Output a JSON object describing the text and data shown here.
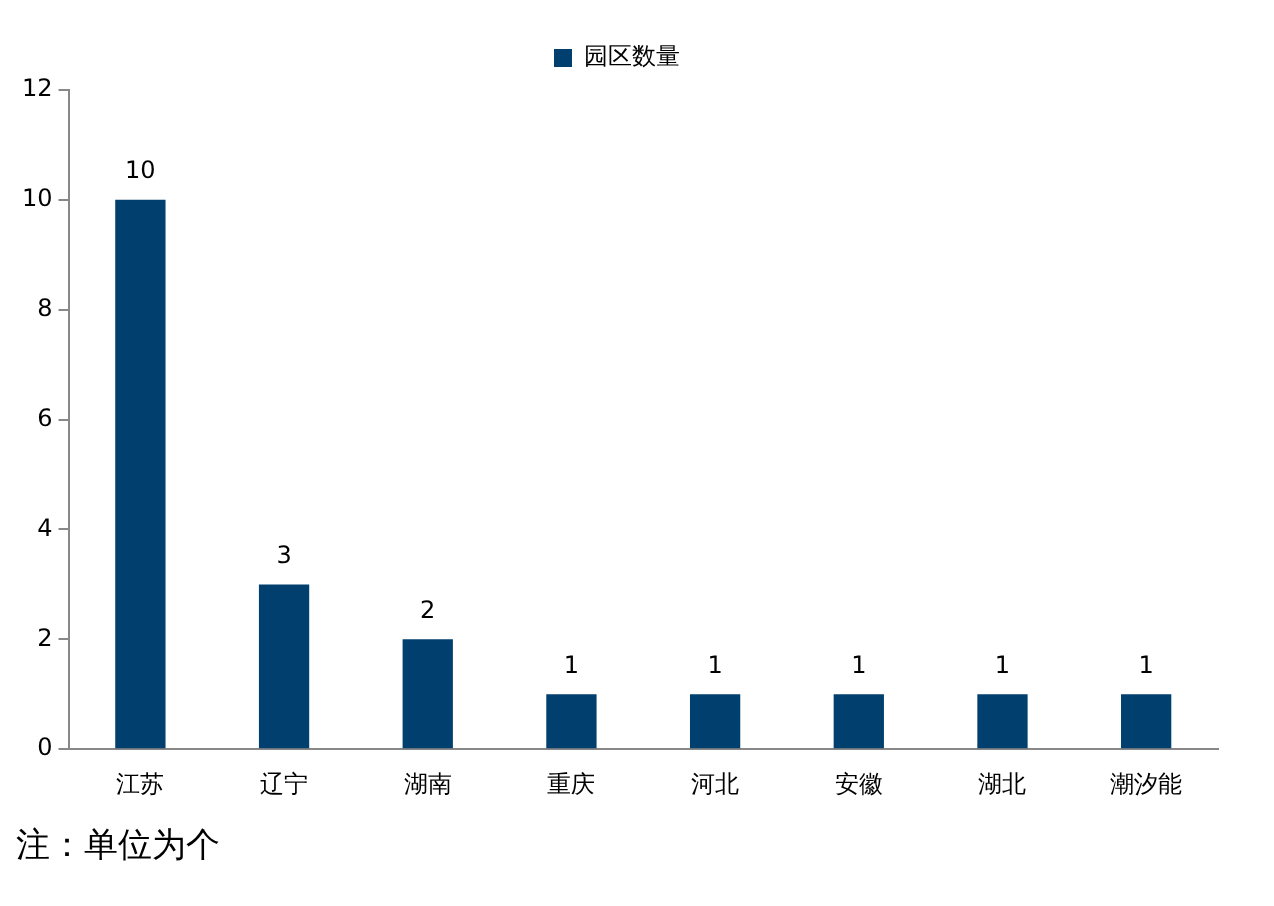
{
  "chart_data": {
    "type": "bar",
    "categories": [
      "江苏",
      "辽宁",
      "湖南",
      "重庆",
      "河北",
      "安徽",
      "湖北",
      "潮汐能"
    ],
    "series": [
      {
        "name": "园区数量",
        "color": "#003f6e",
        "values": [
          10,
          3,
          2,
          1,
          1,
          1,
          1,
          1
        ]
      }
    ],
    "ylim": [
      0,
      12
    ],
    "yticks": [
      0,
      2,
      4,
      6,
      8,
      10,
      12
    ],
    "grid": false,
    "legend": "top",
    "data_labels": true,
    "annotations": [
      "注：单位为个"
    ]
  }
}
